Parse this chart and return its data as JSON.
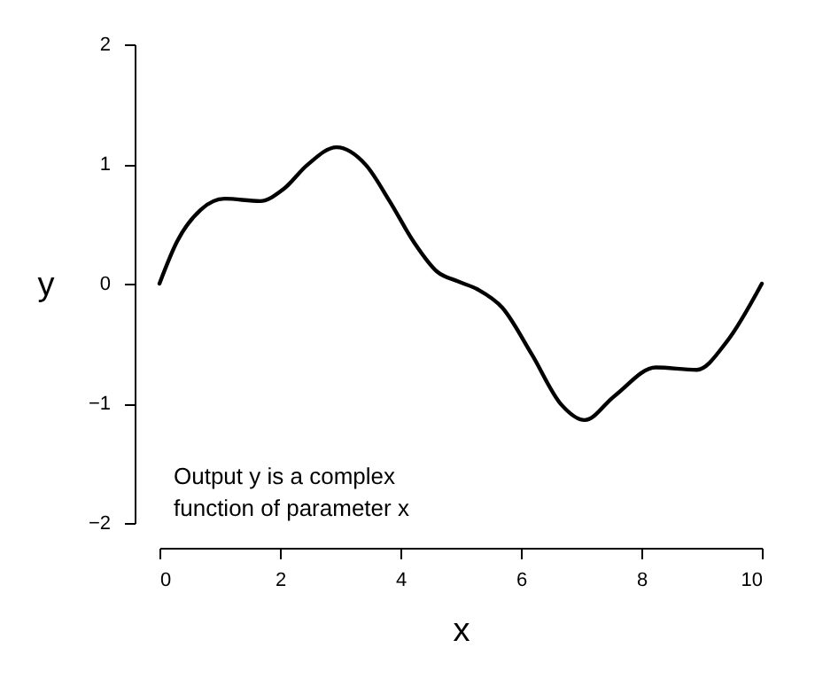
{
  "chart_data": {
    "type": "line",
    "xlabel": "x",
    "ylabel": "y",
    "annotations": [
      "Output y is a complex",
      "function of parameter x"
    ],
    "x": [
      0,
      0.29,
      0.69,
      1.08,
      1.67,
      2.06,
      2.45,
      2.94,
      3.43,
      3.82,
      4.22,
      4.61,
      4.95,
      5.29,
      5.69,
      6.18,
      6.67,
      7.06,
      7.55,
      8.24,
      8.92,
      9.41,
      10
    ],
    "series": [
      {
        "color": "#000000",
        "values": [
          0,
          0.35,
          0.62,
          0.71,
          0.69,
          0.79,
          0.99,
          1.14,
          0.99,
          0.69,
          0.35,
          0.1,
          0.02,
          -0.05,
          -0.2,
          -0.59,
          -1.01,
          -1.14,
          -0.94,
          -0.7,
          -0.72,
          -0.49,
          0
        ]
      }
    ],
    "xlim": [
      0,
      10
    ],
    "ylim": [
      -2,
      2
    ],
    "xticks": [
      0,
      2,
      4,
      6,
      8,
      10
    ],
    "yticks": [
      -2,
      -1,
      0,
      1,
      2
    ],
    "grid": false,
    "marker": "none",
    "line_style": "solid"
  }
}
